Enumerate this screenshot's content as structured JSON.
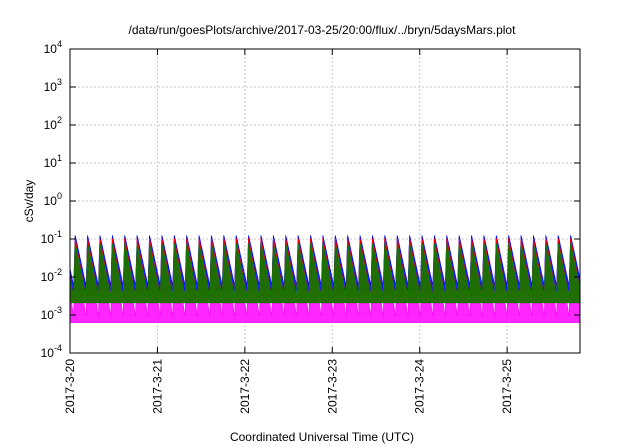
{
  "chart_data": {
    "type": "area",
    "title": "/data/run/goesPlots/archive/2017-03-25/20:00/flux/../bryn/5daysMars.plot",
    "xlabel": "Coordinated Universal Time (UTC)",
    "ylabel": "cSv/day",
    "yscale": "log",
    "ylim": [
      0.0001,
      10000
    ],
    "xlim": [
      "2017-03-20T00:00",
      "2017-03-25T20:00"
    ],
    "x_ticks": [
      "2017-3-20",
      "2017-3-21",
      "2017-3-22",
      "2017-3-23",
      "2017-3-24",
      "2017-3-25"
    ],
    "y_ticks": [
      {
        "base": "10",
        "exp": "-4",
        "value": 0.0001
      },
      {
        "base": "10",
        "exp": "-3",
        "value": 0.001
      },
      {
        "base": "10",
        "exp": "-2",
        "value": 0.01
      },
      {
        "base": "10",
        "exp": "-1",
        "value": 0.1
      },
      {
        "base": "10",
        "exp": "0",
        "value": 1
      },
      {
        "base": "10",
        "exp": "1",
        "value": 10
      },
      {
        "base": "10",
        "exp": "2",
        "value": 100
      },
      {
        "base": "10",
        "exp": "3",
        "value": 1000
      },
      {
        "base": "10",
        "exp": "4",
        "value": 10000
      }
    ],
    "grid": true,
    "legend": "none",
    "series": [
      {
        "color": "#ff00ff",
        "peak": 0.08,
        "trough": 0.0009
      },
      {
        "color": "#00c8c8",
        "peak": 0.12,
        "trough": 0.004
      },
      {
        "color": "#0000ff",
        "peak": 0.13,
        "trough": 0.006
      },
      {
        "color": "#ff0000",
        "peak": 0.11,
        "trough": 0.003
      },
      {
        "color": "#008000",
        "peak": 0.08,
        "trough": 0.003
      }
    ],
    "cycle_period_hours": 3.4,
    "cycle_phase_hours": 1.0
  }
}
